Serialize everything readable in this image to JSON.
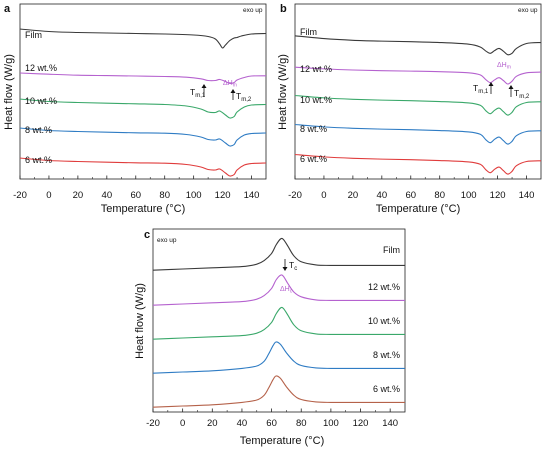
{
  "figure": {
    "panel_labels": [
      "a",
      "b",
      "c"
    ],
    "exo_note": "exo up",
    "xlabel": "Temperature (°C)",
    "ylabel": "Heat flow (W/g)",
    "annotations": {
      "tm1_main": "T",
      "tm1_sub": "m,1",
      "tm2_main": "T",
      "tm2_sub": "m,2",
      "dhm_main": "ΔH",
      "dhm_sub": "m",
      "tc_main": "T",
      "tc_sub": "c",
      "dhc_main": "ΔH",
      "dhc_sub": "c"
    }
  },
  "chart_data": [
    {
      "panel": "a",
      "type": "line",
      "xlabel": "Temperature (°C)",
      "ylabel": "Heat flow (W/g)",
      "xlim": [
        -20,
        150
      ],
      "xticks": [
        -20,
        0,
        20,
        40,
        60,
        80,
        100,
        120,
        140
      ],
      "yticks": "none",
      "series": [
        {
          "name": "Film",
          "color": "#3a3a3a",
          "x": [
            -20,
            0,
            20,
            40,
            60,
            80,
            100,
            110,
            115,
            118,
            120,
            122,
            125,
            128,
            130,
            133,
            140,
            150
          ],
          "y": [
            0.3,
            0.05,
            -0.05,
            -0.1,
            -0.15,
            -0.2,
            -0.3,
            -0.45,
            -0.7,
            -1.2,
            -1.6,
            -1.3,
            -0.85,
            -0.6,
            -0.55,
            -0.4,
            -0.2,
            -0.15
          ]
        },
        {
          "name": "12 wt.%",
          "color": "#b562cf",
          "x": [
            -20,
            0,
            20,
            40,
            60,
            80,
            95,
            105,
            110,
            115,
            118,
            122,
            125,
            128,
            130,
            135,
            140,
            150
          ],
          "y": [
            0.2,
            0.08,
            -0.02,
            -0.06,
            -0.1,
            -0.15,
            -0.22,
            -0.38,
            -0.55,
            -0.55,
            -0.45,
            -0.65,
            -0.85,
            -0.75,
            -0.5,
            -0.25,
            -0.1,
            -0.08
          ]
        },
        {
          "name": "10 wt.%",
          "color": "#3aa86a",
          "x": [
            -20,
            0,
            20,
            40,
            60,
            80,
            95,
            105,
            110,
            115,
            118,
            122,
            125,
            128,
            130,
            135,
            140,
            150
          ],
          "y": [
            0.3,
            0.05,
            -0.05,
            -0.12,
            -0.18,
            -0.25,
            -0.4,
            -0.7,
            -1.0,
            -1.05,
            -0.9,
            -1.3,
            -1.6,
            -1.45,
            -1.0,
            -0.5,
            -0.3,
            -0.25
          ]
        },
        {
          "name": "8 wt.%",
          "color": "#2f7cc4",
          "x": [
            -20,
            0,
            20,
            40,
            60,
            80,
            95,
            105,
            110,
            115,
            118,
            122,
            125,
            128,
            130,
            135,
            140,
            150
          ],
          "y": [
            0.3,
            0.05,
            -0.05,
            -0.12,
            -0.18,
            -0.22,
            -0.35,
            -0.6,
            -0.85,
            -0.9,
            -0.8,
            -1.2,
            -1.5,
            -1.35,
            -0.9,
            -0.4,
            -0.25,
            -0.2
          ]
        },
        {
          "name": "6 wt.%",
          "color": "#e03c3c",
          "x": [
            -20,
            0,
            20,
            40,
            60,
            80,
            95,
            105,
            110,
            115,
            118,
            122,
            125,
            128,
            130,
            135,
            140,
            150
          ],
          "y": [
            0.3,
            0.05,
            -0.05,
            -0.12,
            -0.18,
            -0.22,
            -0.35,
            -0.6,
            -0.85,
            -0.9,
            -0.8,
            -1.2,
            -1.5,
            -1.35,
            -0.9,
            -0.4,
            -0.25,
            -0.2
          ]
        }
      ]
    },
    {
      "panel": "b",
      "type": "line",
      "xlabel": "Temperature (°C)",
      "ylabel": "Heat flow (W/g)",
      "xlim": [
        -20,
        150
      ],
      "xticks": [
        -20,
        0,
        20,
        40,
        60,
        80,
        100,
        120,
        140
      ],
      "yticks": "none",
      "series": [
        {
          "name": "Film",
          "color": "#3a3a3a",
          "x": [
            -20,
            0,
            20,
            40,
            60,
            80,
            100,
            108,
            112,
            115,
            118,
            121,
            124,
            127,
            130,
            133,
            140,
            150
          ],
          "y": [
            0.3,
            0.1,
            -0.02,
            -0.08,
            -0.12,
            -0.18,
            -0.3,
            -0.5,
            -0.8,
            -0.95,
            -0.75,
            -0.6,
            -0.8,
            -1.05,
            -0.95,
            -0.6,
            -0.25,
            -0.18
          ]
        },
        {
          "name": "12 wt.%",
          "color": "#b562cf",
          "x": [
            -20,
            0,
            20,
            40,
            60,
            80,
            100,
            108,
            112,
            115,
            118,
            121,
            124,
            127,
            130,
            133,
            140,
            150
          ],
          "y": [
            0.2,
            0.08,
            0.0,
            -0.05,
            -0.08,
            -0.12,
            -0.2,
            -0.35,
            -0.7,
            -0.9,
            -0.7,
            -0.55,
            -0.75,
            -1.0,
            -0.8,
            -0.45,
            -0.2,
            -0.15
          ]
        },
        {
          "name": "10 wt.%",
          "color": "#3aa86a",
          "x": [
            -20,
            0,
            20,
            40,
            60,
            80,
            100,
            108,
            112,
            115,
            118,
            121,
            124,
            127,
            130,
            133,
            140,
            150
          ],
          "y": [
            0.25,
            0.08,
            -0.02,
            -0.08,
            -0.12,
            -0.18,
            -0.28,
            -0.45,
            -0.85,
            -1.05,
            -0.8,
            -0.65,
            -0.9,
            -1.15,
            -0.95,
            -0.55,
            -0.25,
            -0.2
          ]
        },
        {
          "name": "8 wt.%",
          "color": "#2f7cc4",
          "x": [
            -20,
            0,
            20,
            40,
            60,
            80,
            100,
            108,
            112,
            115,
            118,
            121,
            124,
            127,
            130,
            133,
            140,
            150
          ],
          "y": [
            0.25,
            0.08,
            -0.02,
            -0.08,
            -0.12,
            -0.18,
            -0.28,
            -0.45,
            -0.85,
            -1.05,
            -0.8,
            -0.65,
            -0.9,
            -1.15,
            -0.95,
            -0.55,
            -0.25,
            -0.2
          ]
        },
        {
          "name": "6 wt.%",
          "color": "#e03c3c",
          "x": [
            -20,
            0,
            20,
            40,
            60,
            80,
            100,
            108,
            112,
            115,
            118,
            121,
            124,
            127,
            130,
            133,
            140,
            150
          ],
          "y": [
            0.25,
            0.08,
            -0.02,
            -0.08,
            -0.12,
            -0.18,
            -0.28,
            -0.45,
            -0.85,
            -1.05,
            -0.8,
            -0.65,
            -0.9,
            -1.15,
            -0.95,
            -0.55,
            -0.25,
            -0.2
          ]
        }
      ]
    },
    {
      "panel": "c",
      "type": "line",
      "xlabel": "Temperature (°C)",
      "ylabel": "Heat flow (W/g)",
      "xlim": [
        -20,
        150
      ],
      "xticks": [
        -20,
        0,
        20,
        40,
        60,
        80,
        100,
        120,
        140
      ],
      "yticks": "none",
      "series": [
        {
          "name": "Film",
          "color": "#3a3a3a",
          "x": [
            -20,
            0,
            20,
            40,
            50,
            55,
            60,
            63,
            66,
            68,
            71,
            75,
            80,
            90,
            100,
            120,
            150
          ],
          "y": [
            -0.3,
            -0.25,
            -0.2,
            -0.15,
            -0.05,
            0.1,
            0.4,
            0.75,
            1.0,
            0.98,
            0.7,
            0.3,
            0.05,
            -0.08,
            -0.1,
            -0.1,
            -0.1
          ]
        },
        {
          "name": "12 wt.%",
          "color": "#b562cf",
          "x": [
            -20,
            0,
            20,
            40,
            50,
            55,
            60,
            63,
            66,
            68,
            71,
            75,
            80,
            90,
            100,
            120,
            150
          ],
          "y": [
            -0.3,
            -0.25,
            -0.2,
            -0.15,
            -0.05,
            0.1,
            0.4,
            0.75,
            0.95,
            0.9,
            0.6,
            0.25,
            0.05,
            -0.08,
            -0.1,
            -0.1,
            -0.1
          ]
        },
        {
          "name": "10 wt.%",
          "color": "#3aa86a",
          "x": [
            -20,
            0,
            20,
            40,
            50,
            55,
            60,
            63,
            66,
            68,
            71,
            75,
            80,
            90,
            100,
            120,
            150
          ],
          "y": [
            -0.3,
            -0.25,
            -0.2,
            -0.15,
            -0.05,
            0.1,
            0.4,
            0.75,
            1.0,
            0.98,
            0.7,
            0.3,
            0.05,
            -0.08,
            -0.1,
            -0.1,
            -0.1
          ]
        },
        {
          "name": "8 wt.%",
          "color": "#2f7cc4",
          "x": [
            -20,
            0,
            20,
            40,
            50,
            55,
            58,
            61,
            63,
            66,
            70,
            75,
            80,
            90,
            100,
            120,
            150
          ],
          "y": [
            -0.3,
            -0.25,
            -0.2,
            -0.1,
            0.0,
            0.2,
            0.5,
            0.85,
            1.0,
            0.9,
            0.55,
            0.2,
            0.02,
            -0.08,
            -0.1,
            -0.1,
            -0.1
          ]
        },
        {
          "name": "6 wt.%",
          "color": "#b5624a",
          "x": [
            -20,
            0,
            20,
            40,
            50,
            55,
            58,
            61,
            63,
            66,
            70,
            75,
            80,
            90,
            100,
            120,
            150
          ],
          "y": [
            -0.3,
            -0.25,
            -0.2,
            -0.1,
            0.0,
            0.2,
            0.5,
            0.85,
            1.0,
            0.9,
            0.55,
            0.2,
            0.02,
            -0.08,
            -0.1,
            -0.1,
            -0.1
          ]
        }
      ]
    }
  ]
}
